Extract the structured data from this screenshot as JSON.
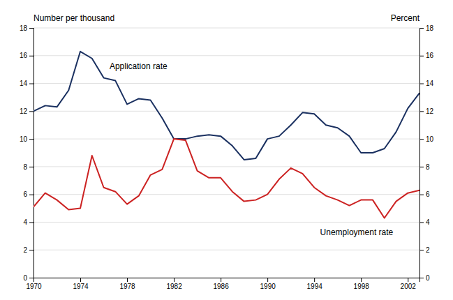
{
  "chart_data": {
    "type": "line",
    "x": [
      1970,
      1971,
      1972,
      1973,
      1974,
      1975,
      1976,
      1977,
      1978,
      1979,
      1980,
      1981,
      1982,
      1983,
      1984,
      1985,
      1986,
      1987,
      1988,
      1989,
      1990,
      1991,
      1992,
      1993,
      1994,
      1995,
      1996,
      1997,
      1998,
      1999,
      2000,
      2001,
      2002,
      2003
    ],
    "series": [
      {
        "color": "#1a3060",
        "values": [
          12.0,
          12.4,
          12.3,
          13.5,
          16.3,
          15.8,
          14.4,
          14.2,
          12.5,
          12.9,
          12.8,
          11.5,
          10.0,
          10.0,
          10.2,
          10.3,
          10.2,
          9.5,
          8.5,
          8.6,
          10.0,
          10.2,
          11.0,
          11.9,
          11.8,
          11.0,
          10.8,
          10.2,
          9.0,
          9.0,
          9.3,
          10.5,
          12.2,
          13.3
        ]
      },
      {
        "color": "#cc2222",
        "axis": "y2",
        "values": [
          5.1,
          6.1,
          5.6,
          4.9,
          5.0,
          8.8,
          6.5,
          6.2,
          5.3,
          5.9,
          7.4,
          7.8,
          10.0,
          9.9,
          7.7,
          7.2,
          7.2,
          6.2,
          5.5,
          5.6,
          6.0,
          7.1,
          7.9,
          7.5,
          6.5,
          5.9,
          5.6,
          5.2,
          5.6,
          5.6,
          4.3,
          5.5,
          6.1,
          6.3
        ]
      }
    ],
    "annotations": [
      {
        "text": "Application rate",
        "x": 1976.5,
        "y": 15.5
      },
      {
        "text": "Unemployment rate",
        "x": 1994.5,
        "y": 3.5
      }
    ],
    "ylabel": "Number per thousand",
    "y2label": "Percent",
    "xlim": [
      1970,
      2003
    ],
    "xticks": [
      1970,
      1974,
      1978,
      1982,
      1986,
      1990,
      1994,
      1998,
      2002
    ],
    "ylim": [
      0,
      18
    ],
    "yticks": [
      0,
      2,
      4,
      6,
      8,
      10,
      12,
      14,
      16,
      18
    ],
    "y2lim": [
      0,
      18
    ],
    "y2ticks": [
      0,
      2,
      4,
      6,
      8,
      10,
      12,
      14,
      16,
      18
    ],
    "grid": true
  }
}
